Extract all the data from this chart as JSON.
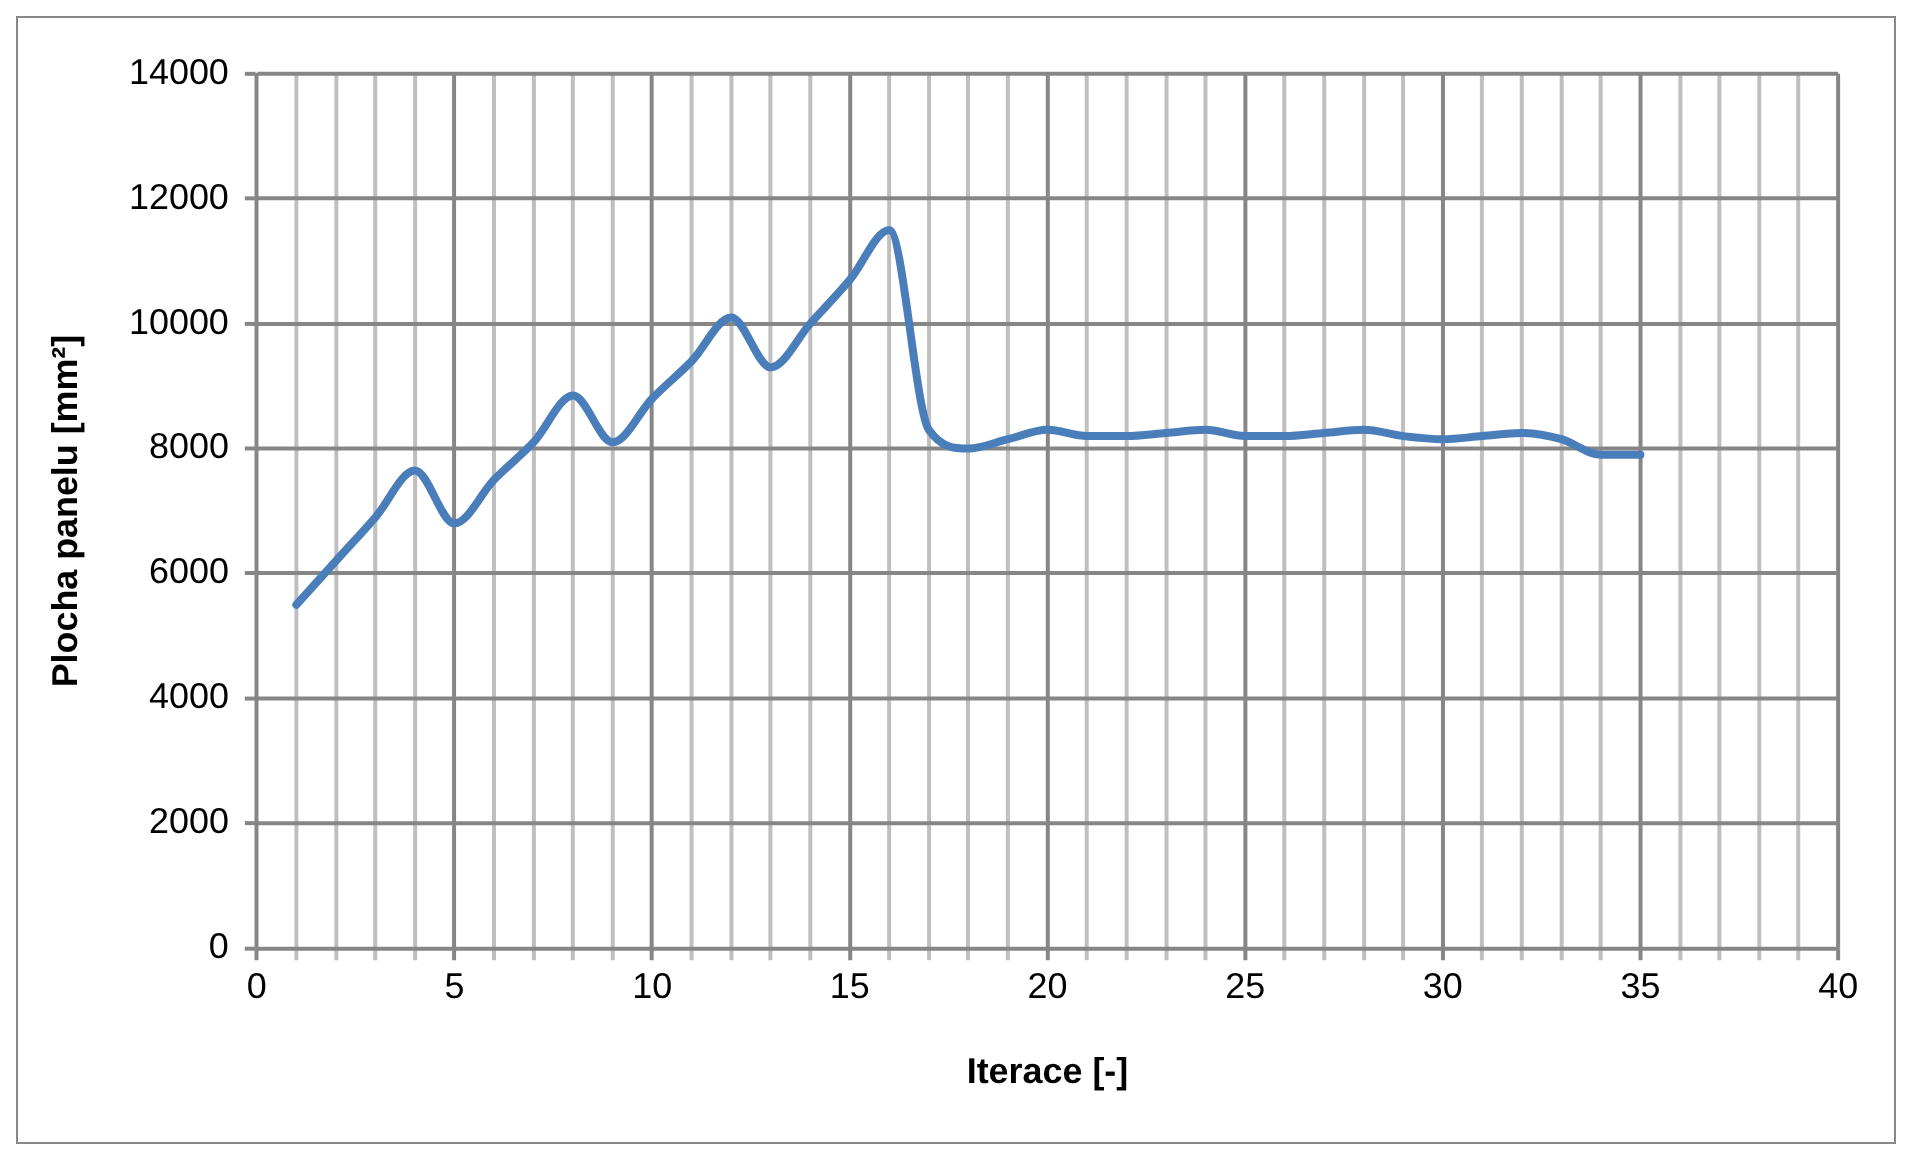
{
  "chart_data": {
    "type": "line",
    "xlabel": "Iterace [-]",
    "ylabel": "Plocha panelu [mm²]",
    "x": [
      1,
      2,
      3,
      4,
      5,
      6,
      7,
      8,
      9,
      10,
      11,
      12,
      13,
      14,
      15,
      16,
      17,
      18,
      19,
      20,
      21,
      22,
      23,
      24,
      25,
      26,
      27,
      28,
      29,
      30,
      31,
      32,
      33,
      34,
      35
    ],
    "series": [
      {
        "color": "#4a7ebb",
        "values": [
          5500,
          6200,
          6900,
          7650,
          6800,
          7500,
          8100,
          8850,
          8100,
          8800,
          9400,
          10100,
          9300,
          10000,
          10700,
          11500,
          8300,
          8000,
          8150,
          8300,
          8200,
          8200,
          8250,
          8300,
          8200,
          8200,
          8250,
          8300,
          8200,
          8150,
          8200,
          8250,
          8150,
          7900,
          7900
        ]
      }
    ],
    "xlim": [
      0,
      40
    ],
    "xticks": [
      0,
      5,
      10,
      15,
      20,
      25,
      30,
      35,
      40
    ],
    "ylim": [
      0,
      14000
    ],
    "yticks": [
      0,
      2000,
      4000,
      6000,
      8000,
      10000,
      12000,
      14000
    ],
    "grid": true,
    "legend": false,
    "marker": "none",
    "line_style": "solid"
  }
}
